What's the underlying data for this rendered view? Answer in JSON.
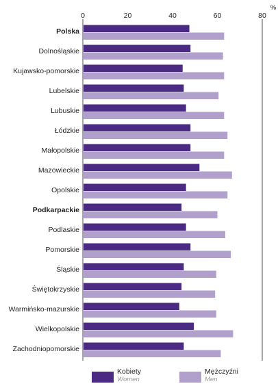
{
  "colors": {
    "women": "#4b2a84",
    "men": "#b1a0cc"
  },
  "chart_data": {
    "type": "bar",
    "orientation": "horizontal",
    "unit": "%",
    "xlim": [
      0,
      80
    ],
    "xticks": [
      0,
      20,
      40,
      60,
      80
    ],
    "grid": false,
    "legend_position": "bottom",
    "categories": [
      "Polska",
      "Dolnośląskie",
      "Kujawsko-pomorskie",
      "Lubelskie",
      "Lubuskie",
      "Łódzkie",
      "Małopolskie",
      "Mazowieckie",
      "Opolskie",
      "Podkarpackie",
      "Podlaskie",
      "Pomorskie",
      "Śląskie",
      "Świętokrzyskie",
      "Warmińsko-mazurskie",
      "Wielkopolskie",
      "Zachodniopomorskie"
    ],
    "bold_categories": [
      "Polska",
      "Podkarpackie"
    ],
    "series": [
      {
        "name": "Kobiety",
        "name_en": "Women",
        "values": [
          47.5,
          48.0,
          44.5,
          45.0,
          46.0,
          48.0,
          48.0,
          52.0,
          46.0,
          44.0,
          46.0,
          48.0,
          45.0,
          44.0,
          43.0,
          49.5,
          45.0
        ]
      },
      {
        "name": "Mężczyźni",
        "name_en": "Men",
        "values": [
          63.0,
          62.5,
          63.0,
          60.5,
          63.0,
          64.5,
          63.0,
          66.5,
          64.5,
          60.0,
          63.5,
          66.0,
          59.5,
          59.0,
          59.5,
          67.0,
          61.5
        ]
      }
    ]
  }
}
